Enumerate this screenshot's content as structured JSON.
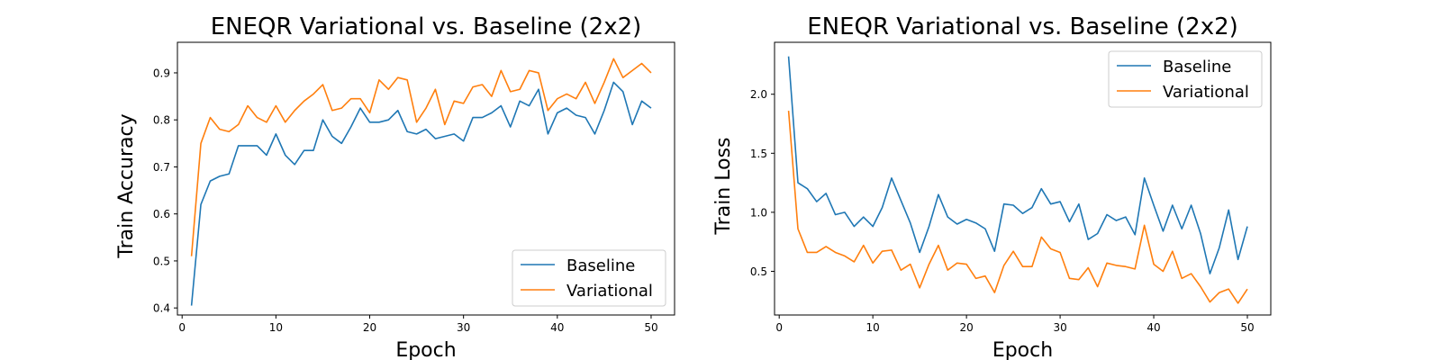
{
  "chart_data": [
    {
      "type": "line",
      "title": "ENEQR Variational vs. Baseline (2x2)",
      "xlabel": "Epoch",
      "ylabel": "Train Accuracy",
      "xlim": [
        -0.5,
        52.5
      ],
      "ylim": [
        0.385,
        0.965
      ],
      "xticks": [
        0,
        10,
        20,
        30,
        40,
        50
      ],
      "yticks": [
        0.4,
        0.5,
        0.6,
        0.7,
        0.8,
        0.9
      ],
      "ytick_labels": [
        "0.4",
        "0.5",
        "0.6",
        "0.7",
        "0.8",
        "0.9"
      ],
      "legend_position": "lower-right",
      "grid": false,
      "x": [
        1,
        2,
        3,
        4,
        5,
        6,
        7,
        8,
        9,
        10,
        11,
        12,
        13,
        14,
        15,
        16,
        17,
        18,
        19,
        20,
        21,
        22,
        23,
        24,
        25,
        26,
        27,
        28,
        29,
        30,
        31,
        32,
        33,
        34,
        35,
        36,
        37,
        38,
        39,
        40,
        41,
        42,
        43,
        44,
        45,
        46,
        47,
        48,
        49,
        50
      ],
      "series": [
        {
          "name": "Baseline",
          "color": "#1f77b4",
          "values": [
            0.405,
            0.62,
            0.67,
            0.68,
            0.685,
            0.745,
            0.745,
            0.745,
            0.725,
            0.77,
            0.725,
            0.705,
            0.735,
            0.735,
            0.8,
            0.765,
            0.75,
            0.785,
            0.825,
            0.795,
            0.795,
            0.8,
            0.82,
            0.775,
            0.77,
            0.78,
            0.76,
            0.765,
            0.77,
            0.755,
            0.805,
            0.805,
            0.815,
            0.83,
            0.785,
            0.84,
            0.83,
            0.865,
            0.77,
            0.815,
            0.825,
            0.81,
            0.805,
            0.77,
            0.82,
            0.88,
            0.86,
            0.79,
            0.84,
            0.825
          ]
        },
        {
          "name": "Variational",
          "color": "#ff7f0e",
          "values": [
            0.51,
            0.75,
            0.805,
            0.78,
            0.775,
            0.79,
            0.83,
            0.805,
            0.795,
            0.83,
            0.795,
            0.82,
            0.84,
            0.855,
            0.875,
            0.82,
            0.825,
            0.845,
            0.845,
            0.815,
            0.885,
            0.865,
            0.89,
            0.885,
            0.795,
            0.825,
            0.865,
            0.79,
            0.84,
            0.835,
            0.87,
            0.875,
            0.85,
            0.905,
            0.86,
            0.865,
            0.905,
            0.9,
            0.82,
            0.845,
            0.855,
            0.845,
            0.88,
            0.835,
            0.88,
            0.93,
            0.89,
            0.905,
            0.92,
            0.9
          ]
        }
      ]
    },
    {
      "type": "line",
      "title": "ENEQR Variational vs. Baseline (2x2)",
      "xlabel": "Epoch",
      "ylabel": "Train Loss",
      "xlim": [
        -0.5,
        52.5
      ],
      "ylim": [
        0.13,
        2.44
      ],
      "xticks": [
        0,
        10,
        20,
        30,
        40,
        50
      ],
      "yticks": [
        0.5,
        1.0,
        1.5,
        2.0
      ],
      "ytick_labels": [
        "0.5",
        "1.0",
        "1.5",
        "2.0"
      ],
      "legend_position": "upper-right",
      "grid": false,
      "x": [
        1,
        2,
        3,
        4,
        5,
        6,
        7,
        8,
        9,
        10,
        11,
        12,
        13,
        14,
        15,
        16,
        17,
        18,
        19,
        20,
        21,
        22,
        23,
        24,
        25,
        26,
        27,
        28,
        29,
        30,
        31,
        32,
        33,
        34,
        35,
        36,
        37,
        38,
        39,
        40,
        41,
        42,
        43,
        44,
        45,
        46,
        47,
        48,
        49,
        50
      ],
      "series": [
        {
          "name": "Baseline",
          "color": "#1f77b4",
          "values": [
            2.32,
            1.25,
            1.2,
            1.09,
            1.16,
            0.98,
            1.0,
            0.88,
            0.96,
            0.88,
            1.04,
            1.29,
            1.1,
            0.91,
            0.66,
            0.88,
            1.15,
            0.96,
            0.9,
            0.94,
            0.91,
            0.86,
            0.67,
            1.07,
            1.06,
            0.99,
            1.04,
            1.2,
            1.07,
            1.09,
            0.92,
            1.07,
            0.77,
            0.82,
            0.98,
            0.93,
            0.96,
            0.81,
            1.29,
            1.06,
            0.84,
            1.06,
            0.86,
            1.06,
            0.82,
            0.48,
            0.7,
            1.02,
            0.6,
            0.88
          ]
        },
        {
          "name": "Variational",
          "color": "#ff7f0e",
          "values": [
            1.86,
            0.86,
            0.66,
            0.66,
            0.71,
            0.66,
            0.63,
            0.58,
            0.72,
            0.57,
            0.67,
            0.68,
            0.51,
            0.56,
            0.36,
            0.56,
            0.72,
            0.51,
            0.57,
            0.56,
            0.44,
            0.46,
            0.32,
            0.55,
            0.67,
            0.54,
            0.54,
            0.79,
            0.69,
            0.66,
            0.44,
            0.43,
            0.53,
            0.37,
            0.57,
            0.55,
            0.54,
            0.52,
            0.89,
            0.56,
            0.5,
            0.67,
            0.44,
            0.48,
            0.37,
            0.24,
            0.32,
            0.35,
            0.23,
            0.35
          ]
        }
      ]
    }
  ]
}
